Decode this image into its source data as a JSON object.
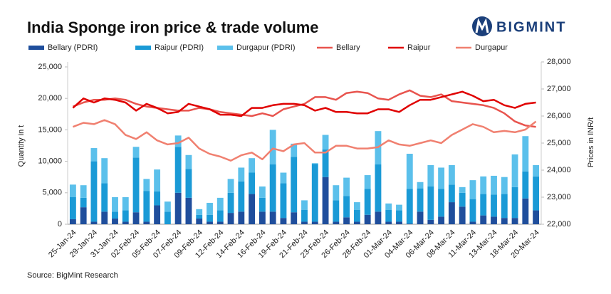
{
  "chart_data": {
    "type": "bar",
    "stacked": true,
    "title": "India Sponge iron price & trade volume",
    "logo": "BIGMINT",
    "source": "Source: BigMint Research",
    "ylabel": "Quantity in t",
    "y2label": "Prices in INR/t",
    "categories": [
      "25-Jan-24",
      null,
      "29-Jan-24",
      null,
      "31-Jan-24",
      null,
      "02-Feb-24",
      null,
      "05-Feb-24",
      null,
      "07-Feb-24",
      null,
      "09-Feb-24",
      null,
      "12-Feb-24",
      null,
      "14-Feb-24",
      null,
      "16-Feb-24",
      null,
      "19-Feb-24",
      null,
      "21-Feb-24",
      null,
      "23-Feb-24",
      null,
      "26-Feb-24",
      null,
      "28-Feb-24",
      null,
      "01-Mar-24",
      null,
      "04-Mar-24",
      null,
      "06-Mar-24",
      null,
      "08-Mar-24",
      null,
      "11-Mar-24",
      null,
      "13-Mar-24",
      null,
      "18-Mar-24",
      null,
      "20-Mar-24"
    ],
    "ylim": [
      0,
      25000
    ],
    "yticks": [
      0,
      {
        "value": 5000,
        "label": "5,000"
      },
      {
        "value": 10000,
        "label": "10,000"
      },
      {
        "value": 15000,
        "label": "15,000"
      },
      {
        "value": 20000,
        "label": "20,000"
      },
      {
        "value": 25000,
        "label": "25,000"
      }
    ],
    "y2lim": [
      22000,
      28000
    ],
    "y2ticks": [
      {
        "value": 22000,
        "label": "22,000"
      },
      {
        "value": 23000,
        "label": "23,000"
      },
      {
        "value": 24000,
        "label": "24,000"
      },
      {
        "value": 25000,
        "label": "25,000"
      },
      {
        "value": 26000,
        "label": "26,000"
      },
      {
        "value": 27000,
        "label": "27,000"
      },
      {
        "value": 28000,
        "label": "28,000"
      }
    ],
    "grid": false,
    "series": [
      {
        "name": "Bellary (PDRI)",
        "type": "bar",
        "color": "#1f4e9c",
        "values": [
          800,
          2700,
          400,
          2000,
          900,
          400,
          1900,
          400,
          3000,
          0,
          5000,
          4200,
          900,
          400,
          400,
          1800,
          2000,
          4800,
          2000,
          2000,
          1000,
          1900,
          400,
          400,
          7500,
          400,
          1100,
          400,
          1500,
          2000,
          400,
          400,
          100,
          2000,
          700,
          1200,
          3500,
          2800,
          400,
          1400,
          1200,
          1000,
          1000,
          4100,
          2200
        ]
      },
      {
        "name": "Raipur (PDRI)",
        "type": "bar",
        "color": "#1a9ad6",
        "values": [
          3500,
          1500,
          9600,
          4500,
          1100,
          1800,
          8700,
          4900,
          2200,
          2000,
          7300,
          4600,
          600,
          1100,
          1800,
          3200,
          4800,
          3400,
          2200,
          7500,
          5500,
          8800,
          1900,
          9200,
          4400,
          3400,
          3400,
          1900,
          4100,
          7500,
          1900,
          1800,
          5500,
          3700,
          5300,
          4400,
          2800,
          2200,
          3600,
          3400,
          3500,
          3800,
          4900,
          4300,
          5400
        ]
      },
      {
        "name": "Durgapur (PDRI)",
        "type": "bar",
        "color": "#5bc0eb",
        "values": [
          2000,
          2000,
          2100,
          4000,
          2300,
          2100,
          1700,
          1900,
          3500,
          1600,
          1800,
          2200,
          900,
          1900,
          2000,
          2200,
          2200,
          2300,
          1800,
          5500,
          1700,
          2100,
          1500,
          100,
          2300,
          2400,
          2900,
          1200,
          2200,
          5300,
          1000,
          900,
          5600,
          1000,
          3400,
          3400,
          3100,
          900,
          3000,
          2800,
          3000,
          2700,
          5200,
          5600,
          1800
        ]
      },
      {
        "name": "Bellary",
        "type": "line",
        "axis": "y2",
        "color": "#e8544e",
        "values": [
          26350,
          26500,
          26600,
          26600,
          26650,
          26600,
          26450,
          26350,
          26300,
          26250,
          26200,
          26200,
          26300,
          26250,
          26150,
          26100,
          26050,
          26000,
          26100,
          26000,
          26250,
          26350,
          26450,
          26700,
          26700,
          26600,
          26850,
          26900,
          26850,
          26650,
          26600,
          26800,
          26950,
          26750,
          26700,
          26800,
          26550,
          26500,
          26450,
          26400,
          26300,
          26100,
          25800,
          25650,
          25600
        ]
      },
      {
        "name": "Raipur",
        "type": "line",
        "axis": "y2",
        "color": "#e00000",
        "values": [
          26300,
          26650,
          26500,
          26650,
          26600,
          26500,
          26200,
          26450,
          26300,
          26100,
          26150,
          26450,
          26350,
          26250,
          26050,
          26050,
          26000,
          26300,
          26300,
          26400,
          26450,
          26450,
          26400,
          26200,
          26300,
          26150,
          26150,
          26100,
          26100,
          26250,
          26250,
          26150,
          26400,
          26600,
          26600,
          26700,
          26800,
          26900,
          26750,
          26550,
          26600,
          26400,
          26300,
          26450,
          26500
        ]
      },
      {
        "name": "Durgapur",
        "type": "line",
        "axis": "y2",
        "color": "#f08070",
        "values": [
          25600,
          25750,
          25700,
          25850,
          25700,
          25300,
          25150,
          25400,
          25100,
          24950,
          25000,
          25200,
          24800,
          24600,
          24500,
          24350,
          24550,
          24650,
          24400,
          24800,
          24700,
          24950,
          25000,
          24650,
          24650,
          24900,
          24900,
          24800,
          24800,
          24850,
          25100,
          24950,
          24900,
          25000,
          25100,
          25000,
          25300,
          25500,
          25700,
          25600,
          25400,
          25450,
          25400,
          25500,
          25800
        ]
      }
    ]
  }
}
